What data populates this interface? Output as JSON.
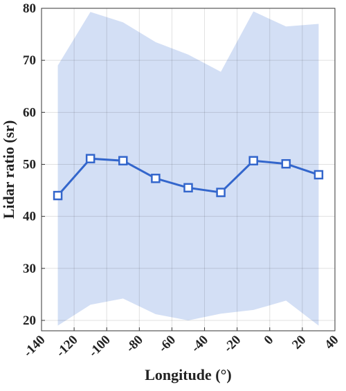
{
  "chart_data": {
    "type": "line",
    "x_label": "Longitude (°)",
    "y_label": "Lidar ratio (sr)",
    "x": [
      -130,
      -110,
      -90,
      -70,
      -50,
      -30,
      -10,
      10,
      30
    ],
    "values": [
      44,
      51.1,
      50.7,
      47.3,
      45.5,
      44.6,
      50.7,
      50.1,
      48
    ],
    "band_upper": [
      69,
      79.3,
      77.3,
      73.5,
      71.1,
      67.8,
      79.4,
      76.5,
      77
    ],
    "band_lower": [
      19,
      23,
      24.2,
      21.2,
      20,
      21.3,
      22,
      23.8,
      19
    ],
    "color": "#3366cc",
    "band_color": "#d3dff5",
    "xlim": [
      -140,
      40
    ],
    "xticks": [
      -140,
      -120,
      -100,
      -80,
      -60,
      -40,
      -20,
      0,
      20,
      40
    ],
    "ylim": [
      18,
      80
    ],
    "yticks": [
      20,
      30,
      40,
      50,
      60,
      70,
      80
    ],
    "grid": true
  }
}
